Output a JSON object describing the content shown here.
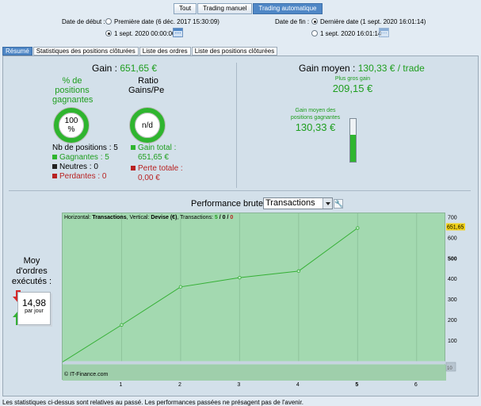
{
  "mode_tabs": [
    {
      "label": "Tout",
      "active": false
    },
    {
      "label": "Trading manuel",
      "active": false
    },
    {
      "label": "Trading automatique",
      "active": true
    }
  ],
  "date_start": {
    "label": "Date de début :",
    "first_option": "Première date (6 déc. 2017 15:30:09)",
    "second_option": "1 sept. 2020 00:00:00",
    "selected": "second"
  },
  "date_end": {
    "label": "Date de fin :",
    "first_option": "Dernière date (1 sept. 2020 16:01:14)",
    "second_option": "1 sept. 2020 16:01:14",
    "selected": "first"
  },
  "section_tabs": [
    {
      "label": "Résumé",
      "active": true
    },
    {
      "label": "Statistiques des positions clôturées",
      "active": false
    },
    {
      "label": "Liste des ordres",
      "active": false
    },
    {
      "label": "Liste des positions clôturées",
      "active": false
    }
  ],
  "summary": {
    "gain_label": "Gain :",
    "gain_value": "651,65 €",
    "pct_label_1": "% de",
    "pct_label_2": "positions",
    "pct_label_3": "gagnantes",
    "pct_value_1": "100",
    "pct_value_2": "%",
    "ratio_label_1": "Ratio",
    "ratio_label_2": "Gains/Pe",
    "ratio_value": "n/d",
    "nb_positions": "Nb de positions : 5",
    "gagnantes": "Gagnantes : 5",
    "neutres": "Neutres : 0",
    "perdantes": "Perdantes : 0",
    "gain_total_label": "Gain total :",
    "gain_total_value": "651,65 €",
    "perte_totale_label": "Perte totale :",
    "perte_totale_value": "0,00 €"
  },
  "gain_moyen": {
    "label": "Gain moyen :",
    "value": "130,33 € / trade",
    "plus_gros_gain_label": "Plus gros gain",
    "plus_gros_gain_value": "209,15 €",
    "gain_moyen_gagnantes_label_1": "Gain moyen des",
    "gain_moyen_gagnantes_label_2": "positions gagnantes",
    "gain_moyen_gagnantes_value": "130,33 €",
    "bar_fraction": 0.623
  },
  "orders": {
    "label_1": "Moy",
    "label_2": "d'ordres",
    "label_3": "exécutés :",
    "value": "14,98",
    "unit": "par jour"
  },
  "performance": {
    "title": "Performance brute",
    "selected": "Transactions"
  },
  "chart_data": {
    "type": "line",
    "info_prefix": "Horizontal: ",
    "info_h": "Transactions",
    "info_mid": ", Vertical: ",
    "info_v": "Devise (€)",
    "info_mid2": ", Transactions: ",
    "info_count_green": "5",
    "info_sep1": " / ",
    "info_count_black": "0",
    "info_sep2": " / ",
    "info_count_red": "0",
    "copyright": "© IT-Finance.com",
    "x": [
      0,
      1,
      2,
      3,
      4,
      5
    ],
    "y": [
      0,
      180,
      365,
      410,
      442,
      651.65
    ],
    "xlim": [
      0,
      6.5
    ],
    "ylim": [
      -10,
      700
    ],
    "x_ticks": [
      "1",
      "2",
      "3",
      "4",
      "5",
      "6"
    ],
    "y_ticks": [
      "700",
      "600",
      "500",
      "400",
      "300",
      "200",
      "100"
    ],
    "last_value_label": "651,65",
    "mini_label": "10",
    "colors": {
      "area": "#a3d9b0",
      "line": "#35b035",
      "last_badge": "#f2d21b"
    }
  },
  "footer": "Les statistiques ci-dessus sont relatives au passé. Les performances passées ne présagent pas de l'avenir."
}
